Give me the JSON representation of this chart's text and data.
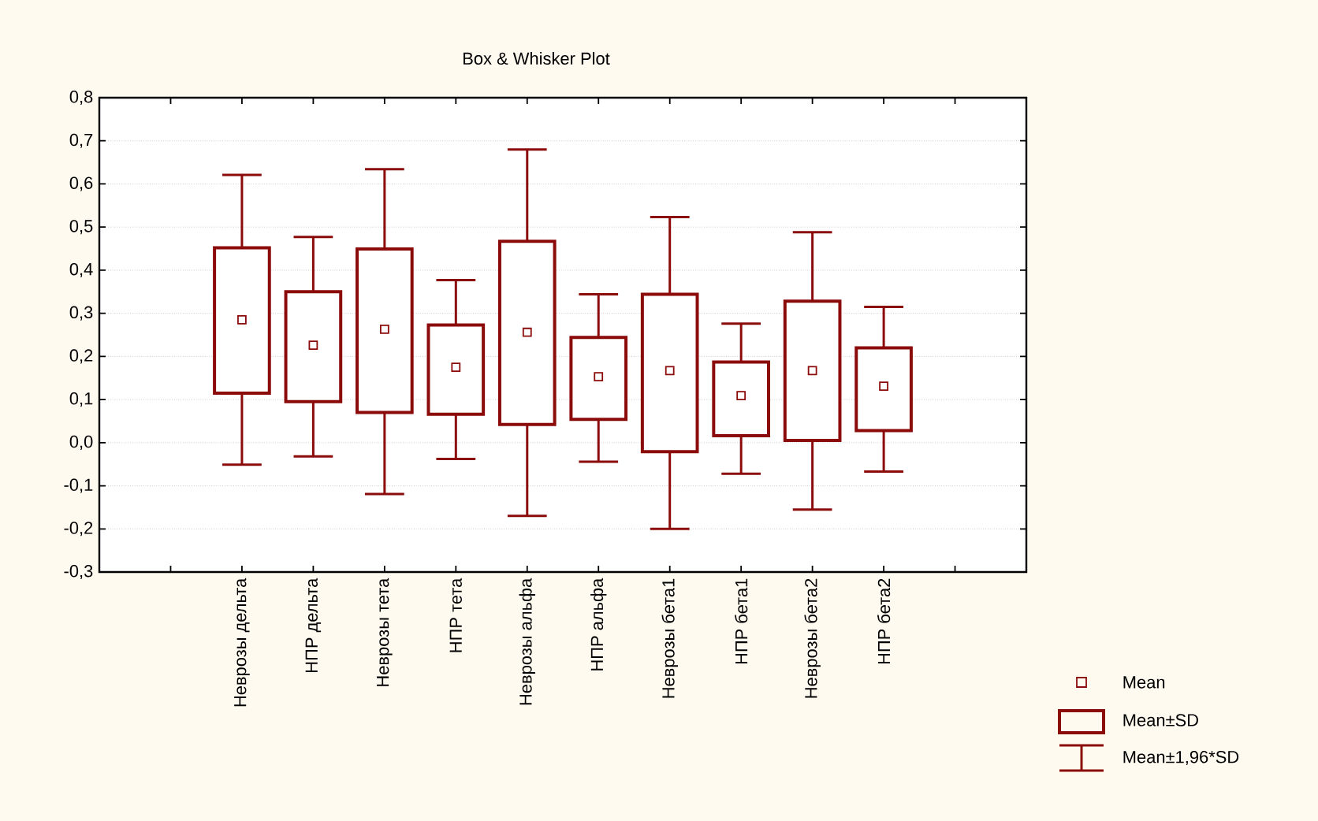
{
  "chart_data": {
    "type": "box",
    "title": "Box & Whisker Plot",
    "categories": [
      "Неврозы дельта",
      "НПР дельта",
      "Неврозы тета",
      "НПР тета",
      "Неврозы альфа",
      "НПР альфа",
      "Неврозы бета1",
      "НПР бета1",
      "Неврозы бета2",
      "НПР бета2"
    ],
    "boxes": [
      {
        "low": -0.051,
        "q1": 0.115,
        "median": 0.285,
        "q3": 0.452,
        "high": 0.621
      },
      {
        "low": -0.032,
        "q1": 0.095,
        "median": 0.226,
        "q3": 0.35,
        "high": 0.477
      },
      {
        "low": -0.119,
        "q1": 0.07,
        "median": 0.263,
        "q3": 0.449,
        "high": 0.634
      },
      {
        "low": -0.038,
        "q1": 0.066,
        "median": 0.175,
        "q3": 0.273,
        "high": 0.377
      },
      {
        "low": -0.17,
        "q1": 0.042,
        "median": 0.256,
        "q3": 0.467,
        "high": 0.68
      },
      {
        "low": -0.044,
        "q1": 0.054,
        "median": 0.153,
        "q3": 0.244,
        "high": 0.344
      },
      {
        "low": -0.2,
        "q1": -0.021,
        "median": 0.167,
        "q3": 0.344,
        "high": 0.523
      },
      {
        "low": -0.072,
        "q1": 0.016,
        "median": 0.109,
        "q3": 0.187,
        "high": 0.276
      },
      {
        "low": -0.155,
        "q1": 0.005,
        "median": 0.167,
        "q3": 0.328,
        "high": 0.488
      },
      {
        "low": -0.067,
        "q1": 0.028,
        "median": 0.131,
        "q3": 0.22,
        "high": 0.315
      }
    ],
    "color": "#8b0a0a",
    "ylim": [
      -0.3,
      0.8
    ],
    "yticks": [
      {
        "value": -0.3,
        "label": "-0,3"
      },
      {
        "value": -0.2,
        "label": "-0,2"
      },
      {
        "value": -0.1,
        "label": "-0,1"
      },
      {
        "value": 0,
        "label": "0,0"
      },
      {
        "value": 0.1,
        "label": "0,1"
      },
      {
        "value": 0.2,
        "label": "0,2"
      },
      {
        "value": 0.3,
        "label": "0,3"
      },
      {
        "value": 0.4,
        "label": "0,4"
      },
      {
        "value": 0.5,
        "label": "0,5"
      },
      {
        "value": 0.6,
        "label": "0,6"
      },
      {
        "value": 0.7,
        "label": "0,7"
      },
      {
        "value": 0.8,
        "label": "0,8"
      }
    ],
    "grid": "y",
    "annotations": [
      "Mean",
      "Mean±SD",
      "Mean±1,96*SD"
    ]
  }
}
